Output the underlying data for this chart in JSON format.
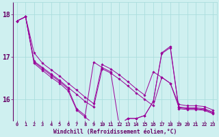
{
  "xlabel": "Windchill (Refroidissement éolien,°C)",
  "background_color": "#cff0f0",
  "grid_color": "#aadddd",
  "line_color": "#990099",
  "x_ticks": [
    0,
    1,
    2,
    3,
    4,
    5,
    6,
    7,
    8,
    9,
    10,
    11,
    12,
    13,
    14,
    15,
    16,
    17,
    18,
    19,
    20,
    21,
    22,
    23
  ],
  "y_ticks": [
    16,
    17,
    18
  ],
  "ylim": [
    15.5,
    18.3
  ],
  "xlim": [
    -0.5,
    23.5
  ],
  "series": [
    [
      17.85,
      17.95,
      17.1,
      16.85,
      16.7,
      16.55,
      16.38,
      16.22,
      16.05,
      15.9,
      16.82,
      16.72,
      16.58,
      16.42,
      16.25,
      16.1,
      16.65,
      16.52,
      16.38,
      15.88,
      15.85,
      15.85,
      15.83,
      15.75
    ],
    [
      17.85,
      17.95,
      16.9,
      16.75,
      16.6,
      16.45,
      16.28,
      16.12,
      15.95,
      15.82,
      16.72,
      16.62,
      16.48,
      16.32,
      16.15,
      16.0,
      15.85,
      16.52,
      16.38,
      15.82,
      15.8,
      15.8,
      15.78,
      15.7
    ],
    [
      17.85,
      17.95,
      16.88,
      16.72,
      16.57,
      16.42,
      16.25,
      15.78,
      15.62,
      16.88,
      16.75,
      16.65,
      15.38,
      15.55,
      15.55,
      15.62,
      15.95,
      17.1,
      17.25,
      15.8,
      15.78,
      15.78,
      15.76,
      15.68
    ],
    [
      17.85,
      17.95,
      16.85,
      16.68,
      16.52,
      16.38,
      16.2,
      15.75,
      15.58,
      15.42,
      15.28,
      15.18,
      15.4,
      15.55,
      15.55,
      15.62,
      15.95,
      17.08,
      17.22,
      15.78,
      15.76,
      15.76,
      15.74,
      15.66
    ]
  ]
}
